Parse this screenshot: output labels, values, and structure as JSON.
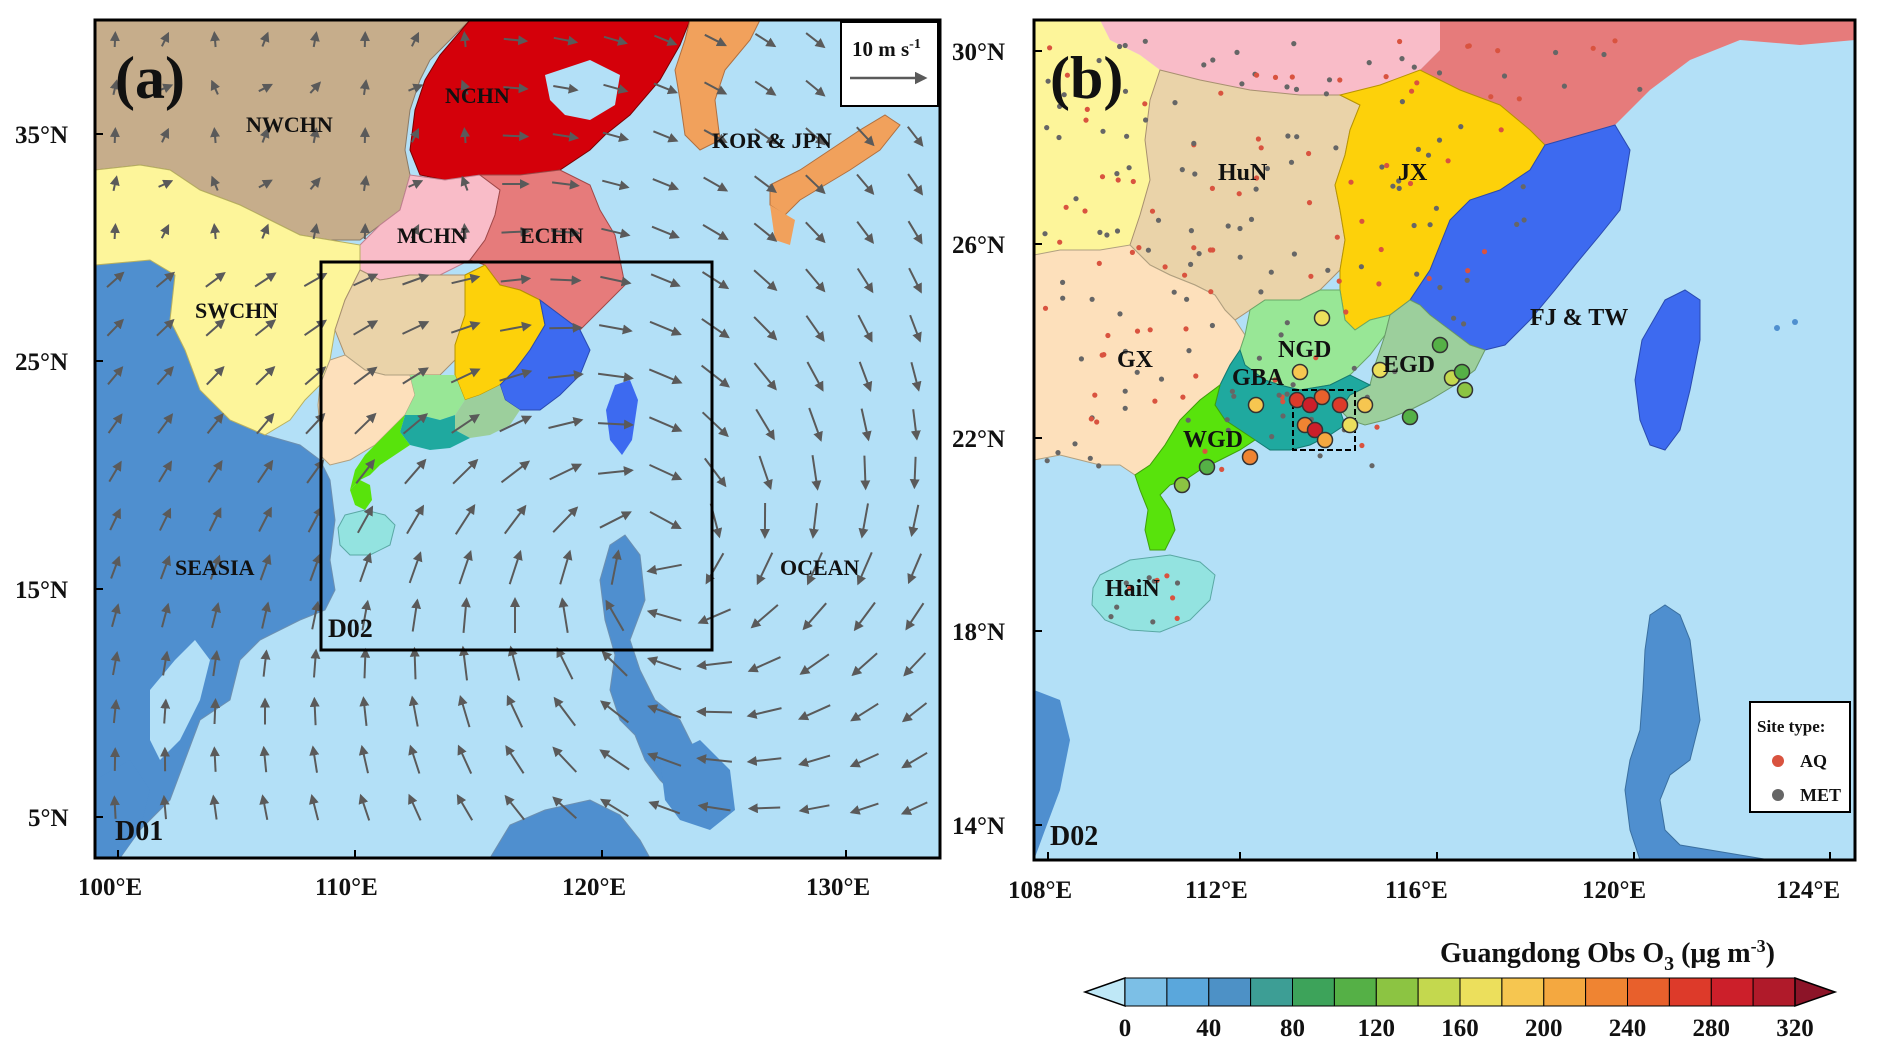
{
  "colors": {
    "ocean": "#b3e0f7",
    "land_other": "#4f8fcf",
    "NWCHN": "#c6ad8b",
    "NCHN": "#d4000a",
    "MCHN": "#f9bcc8",
    "ECHN": "#e67b7b",
    "SWCHN": "#fdf59a",
    "KOR_JPN": "#f1a15c",
    "HuN": "#ead3a9",
    "JX": "#fdd10a",
    "FJ_TW": "#3d6af0",
    "GX": "#fde0bb",
    "NGD": "#98e796",
    "EGD": "#9ccf9c",
    "GBA": "#1fa99f",
    "WGD": "#58e30c",
    "HaiN": "#93e3e0",
    "SEASIA": "#4f8fcf",
    "wind_arrow": "#5a5a5a"
  },
  "panel_a": {
    "tag": "(a)",
    "domain_label": "D01",
    "inner_domain_label": "D02",
    "scale_arrow_label": "10 m s",
    "scale_arrow_sup": "-1",
    "lat_ticks": [
      "35°N",
      "25°N",
      "15°N",
      "5°N"
    ],
    "lon_ticks": [
      "100°E",
      "110°E",
      "120°E",
      "130°E"
    ],
    "regions": [
      "NWCHN",
      "NCHN",
      "MCHN",
      "ECHN",
      "SWCHN",
      "KOR & JPN",
      "SEASIA",
      "OCEAN"
    ]
  },
  "panel_b": {
    "tag": "(b)",
    "domain_label": "D02",
    "lat_ticks": [
      "30°N",
      "26°N",
      "22°N",
      "18°N",
      "14°N"
    ],
    "lon_ticks": [
      "108°E",
      "112°E",
      "116°E",
      "120°E",
      "124°E"
    ],
    "regions": [
      "HuN",
      "JX",
      "FJ  &  TW",
      "GX",
      "NGD",
      "GBA",
      "EGD",
      "WGD",
      "HaiN"
    ],
    "legend": {
      "title": "Site type:",
      "items": [
        {
          "label": "AQ",
          "color": "#d9533f"
        },
        {
          "label": "MET",
          "color": "#666666"
        }
      ]
    }
  },
  "colorbar": {
    "title_prefix": "Guangdong Obs O",
    "title_sub": "3",
    "title_suffix": " (μg m",
    "title_sup": "-3",
    "title_close": ")",
    "tick_labels": [
      "0",
      "40",
      "80",
      "120",
      "160",
      "200",
      "240",
      "280",
      "320"
    ],
    "colors": [
      "#bfe8f7",
      "#7cbfe6",
      "#5aa7dc",
      "#4d91c6",
      "#3d9e95",
      "#3da35a",
      "#55b046",
      "#8cc442",
      "#c4d84e",
      "#ecdf5c",
      "#f6c650",
      "#f4a840",
      "#ef8432",
      "#e8602c",
      "#dd3a2a",
      "#cc1f2a",
      "#b01a2a",
      "#8c1428"
    ]
  }
}
